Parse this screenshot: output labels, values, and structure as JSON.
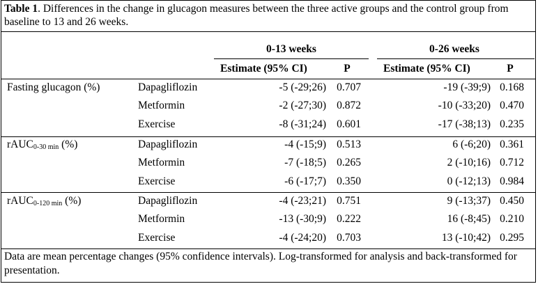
{
  "caption": {
    "label": "Table 1",
    "text": ". Differences in the change in glucagon measures between the three active groups and the control group from baseline to 13 and 26 weeks."
  },
  "header": {
    "group1": "0-13 weeks",
    "group2": "0-26 weeks",
    "estimate_label": "Estimate (95% CI)",
    "p_label": "P"
  },
  "rows": [
    {
      "measure": "Fasting glucagon (%)",
      "measure_base": "",
      "measure_sub": "",
      "measure_tail": "",
      "group": "Dapagliflozin",
      "est13": "-5 (-29;26)",
      "p13": "0.707",
      "est26": "-19 (-39;9)",
      "p26": "0.168"
    },
    {
      "measure": "",
      "group": "Metformin",
      "est13": "-2 (-27;30)",
      "p13": "0.872",
      "est26": "-10 (-33;20)",
      "p26": "0.470"
    },
    {
      "measure": "",
      "group": "Exercise",
      "est13": "-8 (-31;24)",
      "p13": "0.601",
      "est26": "-17 (-38;13)",
      "p26": "0.235"
    },
    {
      "measure": "",
      "measure_base": "rAUC",
      "measure_sub": "0-30 min",
      "measure_tail": " (%)",
      "group": "Dapagliflozin",
      "est13": "-4 (-15;9)",
      "p13": "0.513",
      "est26": "6 (-6;20)",
      "p26": "0.361"
    },
    {
      "measure": "",
      "group": "Metformin",
      "est13": "-7 (-18;5)",
      "p13": "0.265",
      "est26": "2 (-10;16)",
      "p26": "0.712"
    },
    {
      "measure": "",
      "group": "Exercise",
      "est13": "-6 (-17;7)",
      "p13": "0.350",
      "est26": "0 (-12;13)",
      "p26": "0.984"
    },
    {
      "measure": "",
      "measure_base": "rAUC",
      "measure_sub": "0-120 min",
      "measure_tail": " (%)",
      "group": "Dapagliflozin",
      "est13": "-4 (-23;21)",
      "p13": "0.751",
      "est26": "9 (-13;37)",
      "p26": "0.450"
    },
    {
      "measure": "",
      "group": "Metformin",
      "est13": "-13 (-30;9)",
      "p13": "0.222",
      "est26": "16 (-8;45)",
      "p26": "0.210"
    },
    {
      "measure": "",
      "group": "Exercise",
      "est13": "-4 (-24;20)",
      "p13": "0.703",
      "est26": "13 (-10;42)",
      "p26": "0.295"
    }
  ],
  "footnote": "Data are mean percentage changes (95% confidence intervals). Log-transformed for analysis and back-transformed for presentation."
}
